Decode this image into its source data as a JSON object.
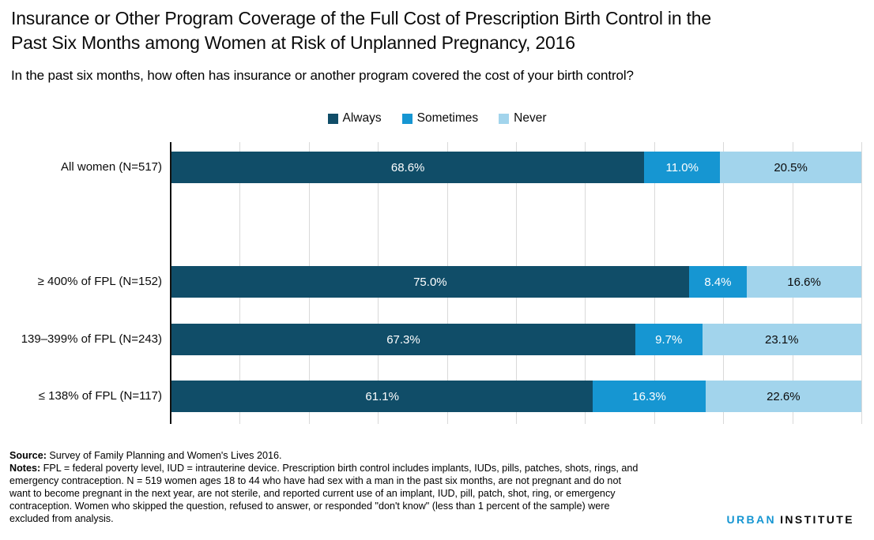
{
  "header": {
    "title_lines": [
      "Insurance or Other Program Coverage of the Full Cost of Prescription Birth Control in the",
      "Past Six Months among Women at Risk of Unplanned Pregnancy, 2016"
    ],
    "subtitle": "In the past six months, how often has insurance or another program covered the cost of your birth control?"
  },
  "chart_data": {
    "type": "bar",
    "stacked": true,
    "orientation": "horizontal",
    "title": "Insurance or Other Program Coverage of the Full Cost of Prescription Birth Control in the Past Six Months among Women at Risk of Unplanned Pregnancy, 2016",
    "subtitle": "In the past six months, how often has insurance or another program covered the cost of your birth control?",
    "categories": [
      "All women (N=517)",
      "≥ 400% of FPL (N=152)",
      "139–399% of FPL (N=243)",
      "≤ 138% of FPL (N=117)"
    ],
    "series": [
      {
        "name": "Always",
        "color": "#104d68",
        "label_color": "#ffffff",
        "values": [
          68.6,
          75.0,
          67.3,
          61.1
        ]
      },
      {
        "name": "Sometimes",
        "color": "#1696d2",
        "label_color": "#ffffff",
        "values": [
          11.0,
          8.4,
          9.7,
          16.3
        ]
      },
      {
        "name": "Never",
        "color": "#a2d4ec",
        "label_color": "#0b0b0b",
        "values": [
          20.5,
          16.6,
          23.1,
          22.6
        ]
      }
    ],
    "value_labels": [
      [
        "68.6%",
        "11.0%",
        "20.5%"
      ],
      [
        "75.0%",
        "8.4%",
        "16.6%"
      ],
      [
        "67.3%",
        "9.7%",
        "23.1%"
      ],
      [
        "61.1%",
        "16.3%",
        "22.6%"
      ]
    ],
    "xlim": [
      0,
      100
    ],
    "gridline_interval_percent": 10,
    "grid": true,
    "legend_position": "top-center",
    "legend": [
      "Always",
      "Sometimes",
      "Never"
    ]
  },
  "footer": {
    "source_label": "Source:",
    "source_text": " Survey of Family Planning and Women's Lives 2016.",
    "notes_label": "Notes:",
    "notes_text": " FPL = federal poverty level, IUD = intrauterine device. Prescription birth control includes implants, IUDs, pills, patches, shots, rings, and emergency contraception. N = 519 women ages 18 to 44 who have had sex with a man in the past six months, are not pregnant and do not want to become pregnant in the next year, are not sterile, and reported current use of an implant, IUD, pill, patch, shot, ring, or emergency contraception. Women who skipped the question, refused to answer, or responded \"don't know\" (less than 1 percent of the sample) were excluded from analysis."
  },
  "brand": {
    "urban": "URBAN",
    "institute": "INSTITUTE"
  }
}
